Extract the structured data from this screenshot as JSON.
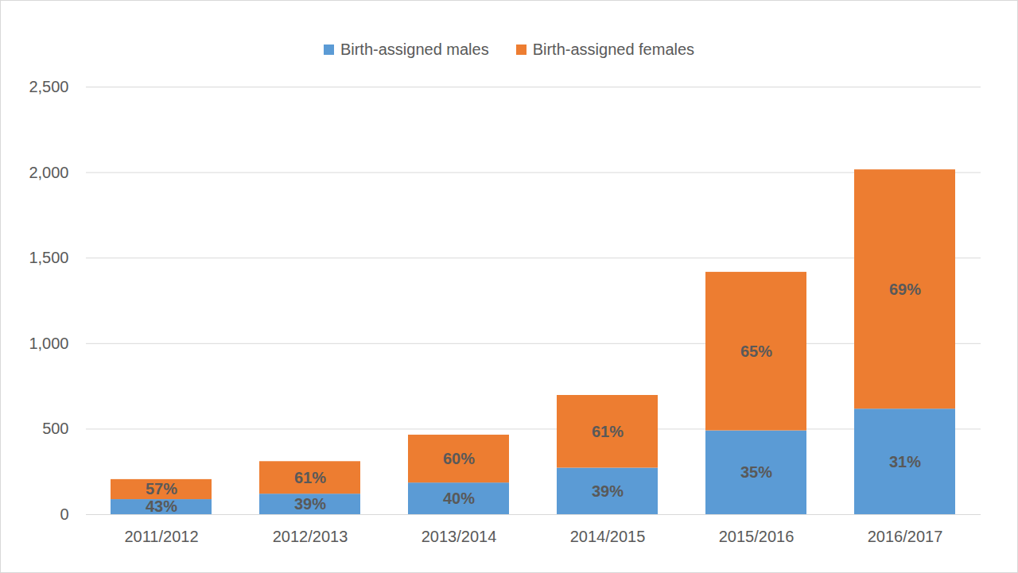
{
  "chart_data": {
    "type": "bar",
    "stacked": true,
    "grid": true,
    "legend": "top",
    "categories": [
      "2011/2012",
      "2012/2013",
      "2013/2014",
      "2014/2015",
      "2015/2016",
      "2016/2017"
    ],
    "series": [
      {
        "name": "Birth-assigned males",
        "color": "#5b9bd5",
        "values": [
          88,
          120,
          185,
          272,
          490,
          617
        ],
        "labels": [
          "43%",
          "39%",
          "40%",
          "39%",
          "35%",
          "31%"
        ]
      },
      {
        "name": "Birth-assigned females",
        "color": "#ed7d31",
        "values": [
          117,
          190,
          280,
          425,
          927,
          1399
        ],
        "labels": [
          "57%",
          "61%",
          "60%",
          "61%",
          "65%",
          "69%"
        ]
      }
    ],
    "ylim": [
      0,
      2500
    ],
    "yticks": [
      0,
      500,
      1000,
      1500,
      2000,
      2500
    ]
  }
}
